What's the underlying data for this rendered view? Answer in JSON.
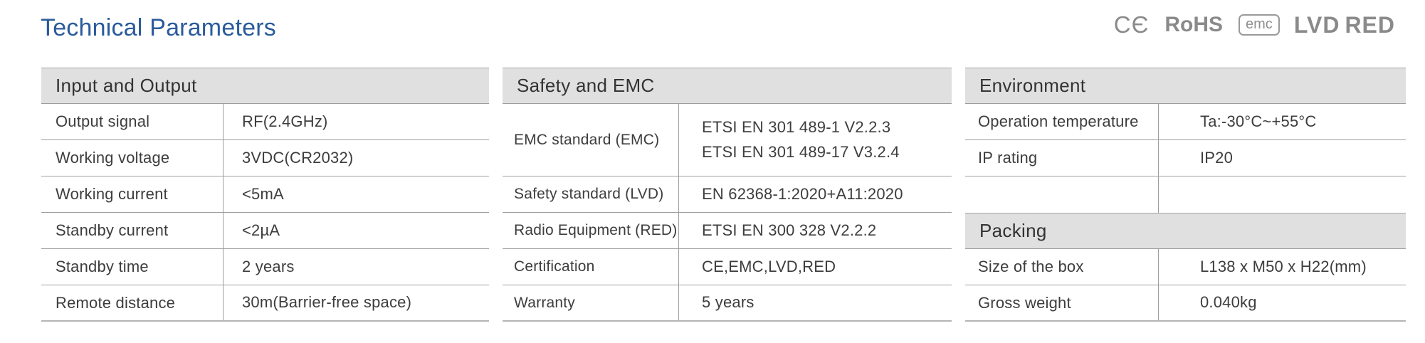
{
  "page": {
    "title": "Technical Parameters"
  },
  "marks": {
    "ce": "CЄ",
    "rohs": "RoHS",
    "emc": "emc",
    "lvd": "LVD",
    "red": "RED"
  },
  "colors": {
    "accent_blue": "#2a5b9b",
    "header_bg": "#e0e0e0",
    "mark_gray": "#8a8a8a",
    "border_gray": "#9e9e9e"
  },
  "tables": {
    "io": {
      "header": "Input and Output",
      "rows": [
        {
          "label": "Output signal",
          "value": "RF(2.4GHz)"
        },
        {
          "label": "Working voltage",
          "value": "3VDC(CR2032)"
        },
        {
          "label": "Working current",
          "value": "<5mA"
        },
        {
          "label": "Standby current",
          "value": "<2µA"
        },
        {
          "label": "Standby time",
          "value": "2 years"
        },
        {
          "label": "Remote distance",
          "value": "30m(Barrier-free space)"
        }
      ]
    },
    "safety": {
      "header": "Safety and EMC",
      "rows": [
        {
          "label": "EMC standard (EMC)",
          "value": "ETSI EN 301 489-1 V2.2.3",
          "value2": "ETSI EN 301 489-17 V3.2.4"
        },
        {
          "label": "Safety standard (LVD)",
          "value": "EN 62368-1:2020+A11:2020"
        },
        {
          "label": "Radio Equipment (RED)",
          "value": "ETSI EN 300 328 V2.2.2"
        },
        {
          "label": "Certification",
          "value": "CE,EMC,LVD,RED"
        },
        {
          "label": "Warranty",
          "value": "5 years"
        }
      ]
    },
    "env": {
      "header": "Environment",
      "rows": [
        {
          "label": "Operation temperature",
          "value": "Ta:-30°C~+55°C"
        },
        {
          "label": "IP rating",
          "value": "IP20"
        }
      ]
    },
    "packing": {
      "header": "Packing",
      "rows": [
        {
          "label": "Size of the box",
          "value": "L138 x M50 x H22(mm)"
        },
        {
          "label": "Gross weight",
          "value": "0.040kg"
        }
      ]
    }
  }
}
